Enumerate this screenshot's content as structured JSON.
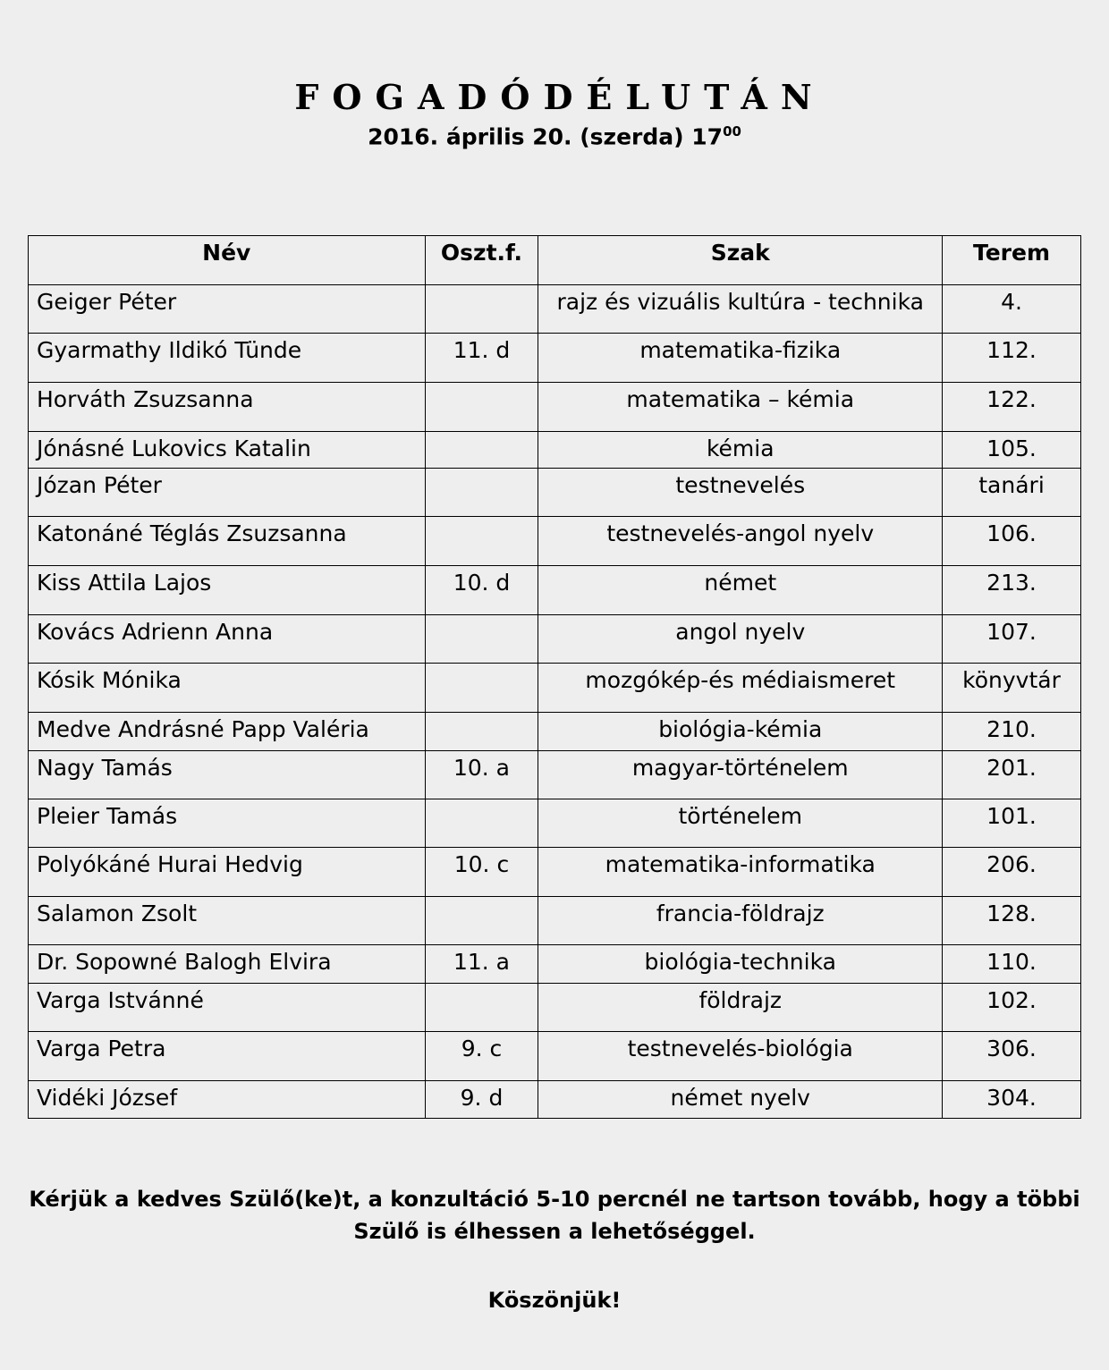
{
  "header": {
    "title": "FOGADÓDÉLUTÁN",
    "date": "2016. április 20. (szerda) 17",
    "time_superscript": "00"
  },
  "table": {
    "columns": [
      "Név",
      "Oszt.f.",
      "Szak",
      "Terem"
    ],
    "rows": [
      {
        "name": "Geiger Péter",
        "class": "",
        "subject": "rajz és vizuális kultúra - technika",
        "room": "4."
      },
      {
        "name": "Gyarmathy Ildikó Tünde",
        "class": "11. d",
        "subject": "matematika-fizika",
        "room": "112."
      },
      {
        "name": "Horváth Zsuzsanna",
        "class": "",
        "subject": "matematika – kémia",
        "room": "122."
      },
      {
        "name": "Jónásné Lukovics Katalin",
        "class": "",
        "subject": "kémia",
        "room": "105."
      },
      {
        "name": "Józan Péter",
        "class": "",
        "subject": "testnevelés",
        "room": "tanári"
      },
      {
        "name": "Katonáné Téglás Zsuzsanna",
        "class": "",
        "subject": "testnevelés-angol nyelv",
        "room": "106."
      },
      {
        "name": "Kiss Attila Lajos",
        "class": "10. d",
        "subject": "német",
        "room": "213."
      },
      {
        "name": "Kovács Adrienn Anna",
        "class": "",
        "subject": "angol nyelv",
        "room": "107."
      },
      {
        "name": "Kósik Mónika",
        "class": "",
        "subject": "mozgókép-és médiaismeret",
        "room": "könyvtár"
      },
      {
        "name": "Medve Andrásné Papp Valéria",
        "class": "",
        "subject": "biológia-kémia",
        "room": "210."
      },
      {
        "name": "Nagy Tamás",
        "class": "10. a",
        "subject": "magyar-történelem",
        "room": "201."
      },
      {
        "name": "Pleier Tamás",
        "class": "",
        "subject": "történelem",
        "room": "101."
      },
      {
        "name": "Polyókáné Hurai Hedvig",
        "class": "10. c",
        "subject": "matematika-informatika",
        "room": "206."
      },
      {
        "name": "Salamon Zsolt",
        "class": "",
        "subject": "francia-földrajz",
        "room": "128."
      },
      {
        "name": "Dr. Sopowné Balogh Elvira",
        "class": "11. a",
        "subject": "biológia-technika",
        "room": "110."
      },
      {
        "name": "Varga Istvánné",
        "class": "",
        "subject": "földrajz",
        "room": "102."
      },
      {
        "name": "Varga Petra",
        "class": "9. c",
        "subject": "testnevelés-biológia",
        "room": "306."
      },
      {
        "name": "Vidéki József",
        "class": "9. d",
        "subject": "német nyelv",
        "room": "304."
      }
    ]
  },
  "footer": {
    "note_line1": "Kérjük a kedves Szülő(ke)t, a konzultáció 5-10 percnél ne tartson tovább, hogy a többi",
    "note_line2": "Szülő is élhessen a lehetőséggel.",
    "thanks": "Köszönjük!"
  }
}
